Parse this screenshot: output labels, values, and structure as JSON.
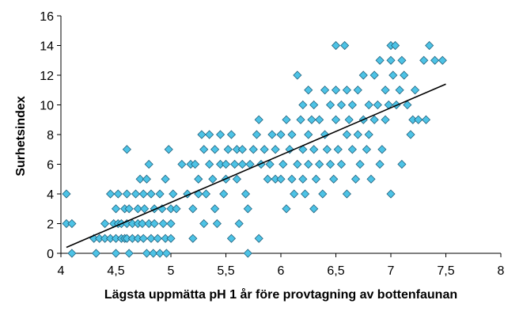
{
  "chart_data": {
    "type": "scatter",
    "title": "",
    "xlabel": "Lägsta uppmätta pH 1 år före provtagning av  bottenfaunan",
    "ylabel": "Surhetsindex",
    "xlim": [
      4,
      8
    ],
    "ylim": [
      0,
      16
    ],
    "x_ticks": [
      4,
      4.5,
      5,
      5.5,
      6,
      6.5,
      7,
      7.5,
      8
    ],
    "x_tick_labels": [
      "4",
      "4,5",
      "5",
      "5,5",
      "6",
      "6,5",
      "7",
      "7,5",
      "8"
    ],
    "y_ticks": [
      0,
      2,
      4,
      6,
      8,
      10,
      12,
      14,
      16
    ],
    "y_tick_labels": [
      "0",
      "2",
      "4",
      "6",
      "8",
      "10",
      "12",
      "14",
      "16"
    ],
    "grid": false,
    "legend": "none",
    "marker": "diamond",
    "colors": {
      "marker_fill": "#4dc3e6",
      "marker_stroke": "#1f5f7a",
      "trendline": "#000000",
      "axis": "#000000"
    },
    "trendline": {
      "type": "linear",
      "x": [
        4.05,
        7.5
      ],
      "y": [
        0.4,
        11.4
      ]
    },
    "series": [
      {
        "points": [
          [
            4.05,
            4
          ],
          [
            4.05,
            2
          ],
          [
            4.1,
            2
          ],
          [
            4.1,
            0
          ],
          [
            4.3,
            1
          ],
          [
            4.32,
            0
          ],
          [
            4.35,
            1
          ],
          [
            4.4,
            1
          ],
          [
            4.4,
            2
          ],
          [
            4.45,
            1
          ],
          [
            4.45,
            4
          ],
          [
            4.48,
            2
          ],
          [
            4.5,
            1
          ],
          [
            4.5,
            0
          ],
          [
            4.5,
            3
          ],
          [
            4.52,
            2
          ],
          [
            4.52,
            4
          ],
          [
            4.55,
            1
          ],
          [
            4.55,
            2
          ],
          [
            4.58,
            1
          ],
          [
            4.58,
            3
          ],
          [
            4.6,
            2
          ],
          [
            4.6,
            1
          ],
          [
            4.6,
            4
          ],
          [
            4.6,
            7
          ],
          [
            4.62,
            0
          ],
          [
            4.62,
            3
          ],
          [
            4.65,
            1
          ],
          [
            4.65,
            2
          ],
          [
            4.68,
            4
          ],
          [
            4.7,
            1
          ],
          [
            4.7,
            2
          ],
          [
            4.7,
            3
          ],
          [
            4.72,
            5
          ],
          [
            4.74,
            2
          ],
          [
            4.75,
            4
          ],
          [
            4.75,
            1
          ],
          [
            4.76,
            3
          ],
          [
            4.78,
            0
          ],
          [
            4.78,
            5
          ],
          [
            4.8,
            2
          ],
          [
            4.8,
            6
          ],
          [
            4.82,
            1
          ],
          [
            4.82,
            4
          ],
          [
            4.84,
            0
          ],
          [
            4.85,
            2
          ],
          [
            4.85,
            3
          ],
          [
            4.88,
            1
          ],
          [
            4.9,
            4
          ],
          [
            4.9,
            0
          ],
          [
            4.92,
            3
          ],
          [
            4.93,
            2
          ],
          [
            4.95,
            1
          ],
          [
            4.95,
            5
          ],
          [
            4.96,
            0
          ],
          [
            4.98,
            7
          ],
          [
            5,
            1
          ],
          [
            5,
            2
          ],
          [
            5,
            3
          ],
          [
            5.02,
            4
          ],
          [
            5.05,
            3
          ],
          [
            5.1,
            6
          ],
          [
            5.15,
            4
          ],
          [
            5.18,
            6
          ],
          [
            5.2,
            1
          ],
          [
            5.2,
            3
          ],
          [
            5.22,
            6
          ],
          [
            5.25,
            5
          ],
          [
            5.25,
            4
          ],
          [
            5.28,
            8
          ],
          [
            5.3,
            7
          ],
          [
            5.3,
            2
          ],
          [
            5.32,
            4
          ],
          [
            5.35,
            8
          ],
          [
            5.35,
            6
          ],
          [
            5.38,
            5
          ],
          [
            5.4,
            7
          ],
          [
            5.4,
            3
          ],
          [
            5.42,
            2
          ],
          [
            5.45,
            8
          ],
          [
            5.45,
            6
          ],
          [
            5.48,
            4
          ],
          [
            5.5,
            6
          ],
          [
            5.5,
            5
          ],
          [
            5.52,
            7
          ],
          [
            5.55,
            8
          ],
          [
            5.55,
            1
          ],
          [
            5.58,
            6
          ],
          [
            5.6,
            7
          ],
          [
            5.6,
            5
          ],
          [
            5.62,
            2
          ],
          [
            5.65,
            6
          ],
          [
            5.65,
            7
          ],
          [
            5.68,
            4
          ],
          [
            5.7,
            0
          ],
          [
            5.7,
            3
          ],
          [
            5.72,
            6
          ],
          [
            5.75,
            7
          ],
          [
            5.78,
            8
          ],
          [
            5.8,
            9
          ],
          [
            5.8,
            1
          ],
          [
            5.82,
            6
          ],
          [
            5.85,
            7
          ],
          [
            5.88,
            5
          ],
          [
            5.9,
            6
          ],
          [
            5.92,
            8
          ],
          [
            5.95,
            7
          ],
          [
            5.95,
            5
          ],
          [
            6,
            8
          ],
          [
            6,
            5
          ],
          [
            6.02,
            6
          ],
          [
            6.05,
            3
          ],
          [
            6.05,
            9
          ],
          [
            6.08,
            7
          ],
          [
            6.1,
            5
          ],
          [
            6.1,
            8
          ],
          [
            6.12,
            4
          ],
          [
            6.15,
            12
          ],
          [
            6.15,
            6
          ],
          [
            6.18,
            9
          ],
          [
            6.2,
            10
          ],
          [
            6.2,
            7
          ],
          [
            6.2,
            5
          ],
          [
            6.22,
            4
          ],
          [
            6.25,
            11
          ],
          [
            6.25,
            8
          ],
          [
            6.25,
            6
          ],
          [
            6.28,
            9
          ],
          [
            6.3,
            10
          ],
          [
            6.3,
            7
          ],
          [
            6.3,
            3
          ],
          [
            6.32,
            5
          ],
          [
            6.35,
            6
          ],
          [
            6.35,
            9
          ],
          [
            6.38,
            4
          ],
          [
            6.4,
            11
          ],
          [
            6.4,
            8
          ],
          [
            6.42,
            7
          ],
          [
            6.45,
            10
          ],
          [
            6.45,
            6
          ],
          [
            6.48,
            5
          ],
          [
            6.5,
            9
          ],
          [
            6.5,
            11
          ],
          [
            6.5,
            14
          ],
          [
            6.52,
            7
          ],
          [
            6.55,
            10
          ],
          [
            6.55,
            6
          ],
          [
            6.58,
            14
          ],
          [
            6.6,
            8
          ],
          [
            6.6,
            11
          ],
          [
            6.6,
            4
          ],
          [
            6.62,
            9
          ],
          [
            6.65,
            7
          ],
          [
            6.65,
            10
          ],
          [
            6.68,
            5
          ],
          [
            6.7,
            8
          ],
          [
            6.7,
            11
          ],
          [
            6.72,
            6
          ],
          [
            6.75,
            12
          ],
          [
            6.75,
            9
          ],
          [
            6.78,
            7
          ],
          [
            6.8,
            10
          ],
          [
            6.8,
            8
          ],
          [
            6.82,
            5
          ],
          [
            6.85,
            9
          ],
          [
            6.85,
            12
          ],
          [
            6.88,
            10
          ],
          [
            6.9,
            13
          ],
          [
            6.9,
            6
          ],
          [
            6.92,
            7
          ],
          [
            6.95,
            9
          ],
          [
            6.95,
            11
          ],
          [
            6.98,
            10
          ],
          [
            7,
            14
          ],
          [
            7,
            4
          ],
          [
            7,
            13
          ],
          [
            7.02,
            12
          ],
          [
            7.04,
            14
          ],
          [
            7.05,
            10
          ],
          [
            7.08,
            11
          ],
          [
            7.1,
            13
          ],
          [
            7.1,
            6
          ],
          [
            7.12,
            12
          ],
          [
            7.15,
            10
          ],
          [
            7.18,
            8
          ],
          [
            7.2,
            9
          ],
          [
            7.22,
            11
          ],
          [
            7.25,
            9
          ],
          [
            7.3,
            13
          ],
          [
            7.32,
            9
          ],
          [
            7.35,
            14
          ],
          [
            7.4,
            13
          ],
          [
            7.47,
            13
          ]
        ]
      }
    ]
  }
}
